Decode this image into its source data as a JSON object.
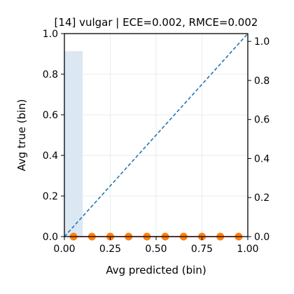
{
  "chart_data": {
    "type": "bar",
    "title": "[14] vulgar | ECE=0.002, RMCE=0.002",
    "xlabel": "Avg predicted (bin)",
    "ylabel": "Avg true (bin)",
    "xlim": [
      0,
      1
    ],
    "ylim": [
      0,
      1
    ],
    "right_ylim": [
      0,
      1.04
    ],
    "xticks": [
      "0.00",
      "0.25",
      "0.50",
      "0.75",
      "1.00"
    ],
    "yticks": [
      "0.0",
      "0.2",
      "0.4",
      "0.6",
      "0.8",
      "1.0"
    ],
    "right_yticks": [
      "0.0",
      "0.2",
      "0.4",
      "0.6",
      "0.8",
      "1.0"
    ],
    "grid": true,
    "histogram": {
      "bins": [
        [
          0.0,
          0.1
        ]
      ],
      "values": [
        0.95
      ],
      "color": "#dbe8f4"
    },
    "diagonal": {
      "x": [
        0,
        1
      ],
      "y": [
        0,
        1
      ],
      "color": "#1f77b4",
      "dash": true
    },
    "calibration_line_color": "#d62728",
    "points": {
      "color": "#ff7f0e",
      "x": [
        0.05,
        0.15,
        0.25,
        0.35,
        0.45,
        0.55,
        0.65,
        0.75,
        0.85,
        0.95
      ],
      "y": [
        0,
        0,
        0,
        0,
        0,
        0,
        0,
        0,
        0,
        0
      ]
    }
  }
}
